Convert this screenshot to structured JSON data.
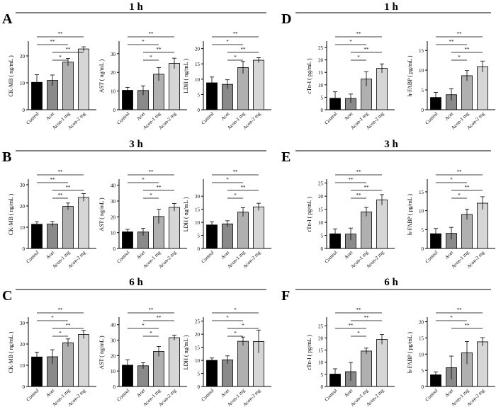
{
  "colors": {
    "bars": [
      "#000000",
      "#8a8a8a",
      "#b0b0b0",
      "#d6d6d6"
    ],
    "ink": "#000000"
  },
  "chart_data": {
    "type": "bar",
    "categories": [
      "Control",
      "Acet",
      "Acon-1 mg",
      "Acon-2 mg"
    ],
    "panel_letters": [
      "A",
      "B",
      "C",
      "D",
      "E",
      "F"
    ],
    "time_titles": [
      "1 h",
      "3 h",
      "6 h",
      "1 h",
      "3 h",
      "6 h"
    ],
    "charts": [
      {
        "group": 0,
        "ylabel": "CK-MB ( ng/mL )",
        "ylim": [
          0,
          25
        ],
        "yticks": [
          0,
          10,
          20
        ],
        "values": [
          10.2,
          10.9,
          17.7,
          22.6
        ],
        "errors": [
          2.8,
          2.0,
          1.4,
          0.8
        ],
        "sig": [
          {
            "from": 0,
            "to": 3,
            "label": "**"
          },
          {
            "from": 0,
            "to": 2,
            "label": "**"
          },
          {
            "from": 1,
            "to": 3,
            "label": "**"
          },
          {
            "from": 1,
            "to": 2,
            "label": "*"
          }
        ]
      },
      {
        "group": 0,
        "ylabel": "AST ( ng/mL )",
        "ylim": [
          0,
          36
        ],
        "yticks": [
          0,
          10,
          20,
          30
        ],
        "values": [
          10.4,
          10.3,
          19.0,
          24.8
        ],
        "errors": [
          1.6,
          2.5,
          3.6,
          2.8
        ],
        "sig": [
          {
            "from": 0,
            "to": 3,
            "label": "**"
          },
          {
            "from": 0,
            "to": 2,
            "label": "*"
          },
          {
            "from": 1,
            "to": 3,
            "label": "**"
          },
          {
            "from": 1,
            "to": 2,
            "label": "*"
          }
        ]
      },
      {
        "group": 0,
        "ylabel": "LDH ( ng/mL )",
        "ylim": [
          0,
          22
        ],
        "yticks": [
          0,
          5,
          10,
          15,
          20
        ],
        "values": [
          8.8,
          8.3,
          13.8,
          16.2
        ],
        "errors": [
          1.9,
          1.5,
          2.0,
          0.8
        ],
        "sig": [
          {
            "from": 0,
            "to": 3,
            "label": "**"
          },
          {
            "from": 0,
            "to": 2,
            "label": "*"
          },
          {
            "from": 1,
            "to": 3,
            "label": "**"
          },
          {
            "from": 1,
            "to": 2,
            "label": "*"
          }
        ]
      },
      {
        "group": 1,
        "ylabel": "CK-MB ( ng/mL )",
        "ylim": [
          0,
          32
        ],
        "yticks": [
          0,
          10,
          20,
          30
        ],
        "values": [
          11.4,
          11.5,
          19.8,
          24.0
        ],
        "errors": [
          1.2,
          1.2,
          1.6,
          1.8
        ],
        "sig": [
          {
            "from": 0,
            "to": 3,
            "label": "**"
          },
          {
            "from": 0,
            "to": 2,
            "label": "**"
          },
          {
            "from": 1,
            "to": 3,
            "label": "**"
          },
          {
            "from": 1,
            "to": 2,
            "label": "**"
          }
        ]
      },
      {
        "group": 1,
        "ylabel": "AST ( ng/mL )",
        "ylim": [
          0,
          43
        ],
        "yticks": [
          0,
          10,
          20,
          30,
          40
        ],
        "values": [
          10.5,
          10.4,
          20.2,
          26.0
        ],
        "errors": [
          1.6,
          2.3,
          4.6,
          2.4
        ],
        "sig": [
          {
            "from": 0,
            "to": 3,
            "label": "**"
          },
          {
            "from": 0,
            "to": 2,
            "label": "*"
          },
          {
            "from": 1,
            "to": 3,
            "label": "**"
          },
          {
            "from": 1,
            "to": 2,
            "label": "*"
          }
        ]
      },
      {
        "group": 1,
        "ylabel": "LDH ( ng/mL )",
        "ylim": [
          0,
          26
        ],
        "yticks": [
          0,
          5,
          10,
          15,
          20
        ],
        "values": [
          9.0,
          9.4,
          13.9,
          15.9
        ],
        "errors": [
          1.2,
          1.2,
          1.7,
          1.4
        ],
        "sig": [
          {
            "from": 0,
            "to": 3,
            "label": "**"
          },
          {
            "from": 0,
            "to": 2,
            "label": "*"
          },
          {
            "from": 1,
            "to": 3,
            "label": "**"
          },
          {
            "from": 1,
            "to": 2,
            "label": "*"
          }
        ]
      },
      {
        "group": 2,
        "ylabel": "CK-MB ( ng/mL )",
        "ylim": [
          0,
          32
        ],
        "yticks": [
          0,
          10,
          20,
          30
        ],
        "values": [
          13.9,
          14.0,
          20.6,
          24.5
        ],
        "errors": [
          2.3,
          3.3,
          1.8,
          1.9
        ],
        "sig": [
          {
            "from": 0,
            "to": 3,
            "label": "**"
          },
          {
            "from": 0,
            "to": 2,
            "label": "*"
          },
          {
            "from": 1,
            "to": 3,
            "label": "**"
          },
          {
            "from": 1,
            "to": 2,
            "label": "*"
          }
        ]
      },
      {
        "group": 2,
        "ylabel": "AST ( ng/mL )",
        "ylim": [
          0,
          44
        ],
        "yticks": [
          0,
          10,
          20,
          30,
          40
        ],
        "values": [
          13.8,
          13.4,
          22.7,
          31.6
        ],
        "errors": [
          3.5,
          2.0,
          3.2,
          1.7
        ],
        "sig": [
          {
            "from": 0,
            "to": 3,
            "label": "**"
          },
          {
            "from": 1,
            "to": 3,
            "label": "**"
          },
          {
            "from": 0,
            "to": 2,
            "label": "*"
          },
          {
            "from": 1,
            "to": 2,
            "label": "*"
          }
        ]
      },
      {
        "group": 2,
        "ylabel": "LDH ( ng/mL )",
        "ylim": [
          0,
          26
        ],
        "yticks": [
          0,
          5,
          10,
          15,
          20,
          25
        ],
        "values": [
          10.0,
          10.2,
          17.3,
          17.2
        ],
        "errors": [
          0.9,
          1.5,
          1.6,
          4.4
        ],
        "sig": [
          {
            "from": 0,
            "to": 3,
            "label": "*"
          },
          {
            "from": 0,
            "to": 2,
            "label": "*"
          },
          {
            "from": 1,
            "to": 3,
            "label": "*"
          },
          {
            "from": 1,
            "to": 2,
            "label": "*"
          }
        ]
      },
      {
        "group": 3,
        "ylabel": "cTn-I ( pg/mL )",
        "ylim": [
          0,
          27
        ],
        "yticks": [
          0,
          5,
          10,
          15,
          20,
          25
        ],
        "values": [
          4.6,
          4.5,
          12.3,
          16.6
        ],
        "errors": [
          2.6,
          1.8,
          2.9,
          1.8
        ],
        "sig": [
          {
            "from": 0,
            "to": 3,
            "label": "**"
          },
          {
            "from": 0,
            "to": 2,
            "label": "*"
          },
          {
            "from": 1,
            "to": 3,
            "label": "**"
          },
          {
            "from": 1,
            "to": 2,
            "label": "*"
          }
        ]
      },
      {
        "group": 3,
        "ylabel": "h-FABP ( pg/mL )",
        "ylim": [
          0,
          17
        ],
        "yticks": [
          0,
          5,
          10,
          15
        ],
        "values": [
          3.1,
          3.8,
          8.6,
          10.9
        ],
        "errors": [
          1.3,
          1.5,
          1.3,
          1.4
        ],
        "sig": [
          {
            "from": 0,
            "to": 3,
            "label": "**"
          },
          {
            "from": 0,
            "to": 2,
            "label": "**"
          },
          {
            "from": 1,
            "to": 3,
            "label": "**"
          },
          {
            "from": 1,
            "to": 2,
            "label": "*"
          }
        ]
      },
      {
        "group": 4,
        "ylabel": "cTn-I ( pg/mL )",
        "ylim": [
          0,
          26
        ],
        "yticks": [
          0,
          5,
          10,
          15,
          20,
          25
        ],
        "values": [
          5.6,
          5.5,
          14.0,
          18.6
        ],
        "errors": [
          1.9,
          2.3,
          1.7,
          2.0
        ],
        "sig": [
          {
            "from": 0,
            "to": 3,
            "label": "**"
          },
          {
            "from": 0,
            "to": 2,
            "label": "**"
          },
          {
            "from": 1,
            "to": 3,
            "label": "**"
          },
          {
            "from": 1,
            "to": 2,
            "label": "**"
          }
        ]
      },
      {
        "group": 4,
        "ylabel": "h-FABP ( pg/mL )",
        "ylim": [
          0,
          18
        ],
        "yticks": [
          0,
          5,
          10,
          15
        ],
        "values": [
          3.9,
          4.0,
          9.0,
          12.0
        ],
        "errors": [
          1.4,
          1.6,
          1.4,
          1.7
        ],
        "sig": [
          {
            "from": 0,
            "to": 3,
            "label": "**"
          },
          {
            "from": 0,
            "to": 2,
            "label": "*"
          },
          {
            "from": 1,
            "to": 3,
            "label": "**"
          },
          {
            "from": 1,
            "to": 2,
            "label": "*"
          }
        ]
      },
      {
        "group": 5,
        "ylabel": "cTn-I ( pg/mL )",
        "ylim": [
          0,
          28
        ],
        "yticks": [
          0,
          5,
          10,
          15,
          20,
          25
        ],
        "values": [
          5.1,
          6.1,
          14.6,
          19.4
        ],
        "errors": [
          2.2,
          3.8,
          1.2,
          2.0
        ],
        "sig": [
          {
            "from": 0,
            "to": 3,
            "label": "**"
          },
          {
            "from": 1,
            "to": 3,
            "label": "**"
          },
          {
            "from": 0,
            "to": 2,
            "label": "**"
          },
          {
            "from": 1,
            "to": 2,
            "label": "*"
          }
        ]
      },
      {
        "group": 5,
        "ylabel": "h-FABP ( pg/mL )",
        "ylim": [
          0,
          21
        ],
        "yticks": [
          0,
          5,
          10,
          15,
          20
        ],
        "values": [
          3.6,
          5.8,
          10.4,
          13.8
        ],
        "errors": [
          0.9,
          3.6,
          3.5,
          1.3
        ],
        "sig": [
          {
            "from": 0,
            "to": 3,
            "label": "**"
          },
          {
            "from": 0,
            "to": 2,
            "label": "*"
          },
          {
            "from": 1,
            "to": 3,
            "label": "**"
          }
        ]
      }
    ]
  }
}
